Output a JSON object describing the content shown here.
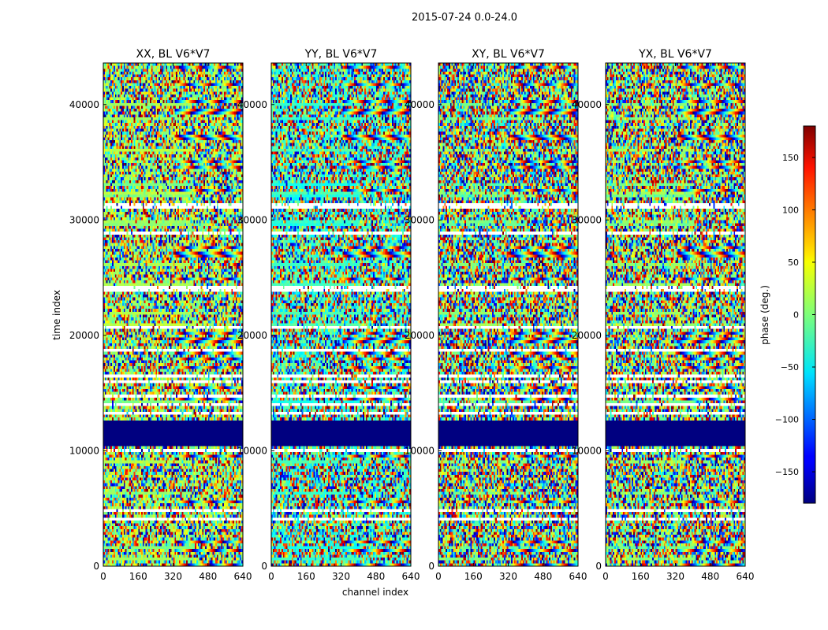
{
  "figure_title": "2015-07-24 0.0-24.0",
  "chart_data": {
    "type": "heatmap",
    "title": "2015-07-24 0.0-24.0",
    "xlabel": "channel index",
    "ylabel": "time index",
    "xlim": [
      0,
      640
    ],
    "ylim": [
      0,
      43600
    ],
    "x_ticks": [
      0,
      160,
      320,
      480,
      640
    ],
    "y_ticks": [
      0,
      10000,
      20000,
      30000,
      40000
    ],
    "panels": [
      {
        "title": "XX, BL V6*V7",
        "bias": 12,
        "smooth": 0.55
      },
      {
        "title": "YY, BL V6*V7",
        "bias": -25,
        "smooth": 0.5
      },
      {
        "title": "XY, BL V6*V7",
        "bias": 0,
        "smooth": 0.25
      },
      {
        "title": "YX, BL V6*V7",
        "bias": 5,
        "smooth": 0.35
      }
    ],
    "flagged_time_range": [
      10400,
      12600
    ],
    "colorbar": {
      "label": "phase (deg.)",
      "range": [
        -180,
        180
      ],
      "ticks": [
        150,
        100,
        50,
        0,
        -50,
        -100,
        -150
      ],
      "colormap": "jet"
    }
  }
}
